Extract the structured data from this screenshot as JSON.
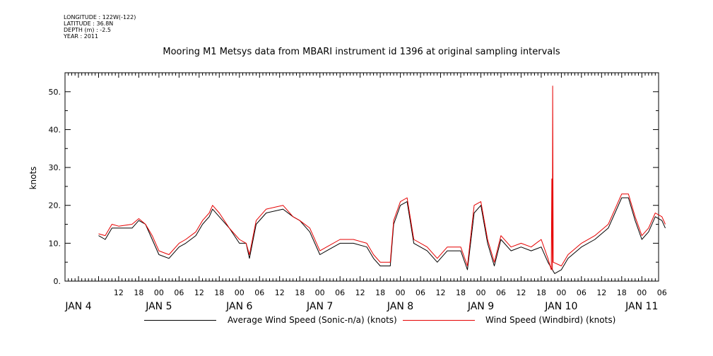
{
  "meta": {
    "longitude": "LONGITUDE : 122W(-122)",
    "latitude": "LATITUDE : 36.8N",
    "depth": "DEPTH (m) : -2.5",
    "year": "YEAR : 2011"
  },
  "colors": {
    "average": "#000000",
    "windbird": "#e60000"
  },
  "chart_data": {
    "type": "line",
    "title": "Mooring M1 Metsys data from MBARI instrument id 1396 at original sampling intervals",
    "ylabel": "knots",
    "xlabel": "",
    "ylim": [
      0,
      55
    ],
    "yticks": [
      0,
      10,
      20,
      30,
      40,
      50
    ],
    "ytick_labels": [
      "0.",
      "10.",
      "20.",
      "30.",
      "40.",
      "50."
    ],
    "xlim": [
      "2011-01-03T20:00",
      "2011-01-11T05:00"
    ],
    "hour_ticks": [
      {
        "t": "2011-01-04T12:00",
        "label": "12"
      },
      {
        "t": "2011-01-04T18:00",
        "label": "18"
      },
      {
        "t": "2011-01-05T00:00",
        "label": "00"
      },
      {
        "t": "2011-01-05T06:00",
        "label": "06"
      },
      {
        "t": "2011-01-05T12:00",
        "label": "12"
      },
      {
        "t": "2011-01-05T18:00",
        "label": "18"
      },
      {
        "t": "2011-01-06T00:00",
        "label": "00"
      },
      {
        "t": "2011-01-06T06:00",
        "label": "06"
      },
      {
        "t": "2011-01-06T12:00",
        "label": "12"
      },
      {
        "t": "2011-01-06T18:00",
        "label": "18"
      },
      {
        "t": "2011-01-07T00:00",
        "label": "00"
      },
      {
        "t": "2011-01-07T06:00",
        "label": "06"
      },
      {
        "t": "2011-01-07T12:00",
        "label": "12"
      },
      {
        "t": "2011-01-07T18:00",
        "label": "18"
      },
      {
        "t": "2011-01-08T00:00",
        "label": "00"
      },
      {
        "t": "2011-01-08T06:00",
        "label": "06"
      },
      {
        "t": "2011-01-08T12:00",
        "label": "12"
      },
      {
        "t": "2011-01-08T18:00",
        "label": "18"
      },
      {
        "t": "2011-01-09T00:00",
        "label": "00"
      },
      {
        "t": "2011-01-09T06:00",
        "label": "06"
      },
      {
        "t": "2011-01-09T12:00",
        "label": "12"
      },
      {
        "t": "2011-01-09T18:00",
        "label": "18"
      },
      {
        "t": "2011-01-10T00:00",
        "label": "00"
      },
      {
        "t": "2011-01-10T06:00",
        "label": "06"
      },
      {
        "t": "2011-01-10T12:00",
        "label": "12"
      },
      {
        "t": "2011-01-10T18:00",
        "label": "18"
      },
      {
        "t": "2011-01-11T00:00",
        "label": "00"
      },
      {
        "t": "2011-01-11T06:00",
        "label": "06"
      }
    ],
    "day_labels": [
      {
        "t": "2011-01-04T00:00",
        "label": "JAN  4"
      },
      {
        "t": "2011-01-05T00:00",
        "label": "JAN  5"
      },
      {
        "t": "2011-01-06T00:00",
        "label": "JAN  6"
      },
      {
        "t": "2011-01-07T00:00",
        "label": "JAN  7"
      },
      {
        "t": "2011-01-08T00:00",
        "label": "JAN  8"
      },
      {
        "t": "2011-01-09T00:00",
        "label": "JAN  9"
      },
      {
        "t": "2011-01-10T00:00",
        "label": "JAN 10"
      },
      {
        "t": "2011-01-11T00:00",
        "label": "JAN 11"
      }
    ],
    "series": [
      {
        "name": "Average Wind Speed (Sonic-n/a) (knots)",
        "points": [
          [
            "2011-01-04T06:00",
            12
          ],
          [
            "2011-01-04T08:00",
            11
          ],
          [
            "2011-01-04T10:00",
            14
          ],
          [
            "2011-01-04T12:00",
            14
          ],
          [
            "2011-01-04T16:00",
            14
          ],
          [
            "2011-01-04T18:00",
            16
          ],
          [
            "2011-01-04T20:00",
            15
          ],
          [
            "2011-01-04T22:00",
            11
          ],
          [
            "2011-01-05T00:00",
            7
          ],
          [
            "2011-01-05T03:00",
            6
          ],
          [
            "2011-01-05T06:00",
            9
          ],
          [
            "2011-01-05T08:00",
            10
          ],
          [
            "2011-01-05T11:00",
            12
          ],
          [
            "2011-01-05T13:00",
            15
          ],
          [
            "2011-01-05T15:00",
            17
          ],
          [
            "2011-01-05T16:00",
            19
          ],
          [
            "2011-01-05T18:00",
            17
          ],
          [
            "2011-01-05T21:00",
            14
          ],
          [
            "2011-01-06T00:00",
            10
          ],
          [
            "2011-01-06T02:00",
            10
          ],
          [
            "2011-01-06T03:00",
            6
          ],
          [
            "2011-01-06T05:00",
            15
          ],
          [
            "2011-01-06T08:00",
            18
          ],
          [
            "2011-01-06T13:00",
            19
          ],
          [
            "2011-01-06T16:00",
            17
          ],
          [
            "2011-01-06T18:00",
            16
          ],
          [
            "2011-01-06T21:00",
            13
          ],
          [
            "2011-01-07T00:00",
            7
          ],
          [
            "2011-01-07T02:00",
            8
          ],
          [
            "2011-01-07T06:00",
            10
          ],
          [
            "2011-01-07T10:00",
            10
          ],
          [
            "2011-01-07T14:00",
            9
          ],
          [
            "2011-01-07T16:00",
            6
          ],
          [
            "2011-01-07T18:00",
            4
          ],
          [
            "2011-01-07T21:00",
            4
          ],
          [
            "2011-01-07T22:00",
            15
          ],
          [
            "2011-01-08T00:00",
            20
          ],
          [
            "2011-01-08T02:00",
            21
          ],
          [
            "2011-01-08T04:00",
            10
          ],
          [
            "2011-01-08T08:00",
            8
          ],
          [
            "2011-01-08T11:00",
            5
          ],
          [
            "2011-01-08T14:00",
            8
          ],
          [
            "2011-01-08T18:00",
            8
          ],
          [
            "2011-01-08T20:00",
            3
          ],
          [
            "2011-01-08T22:00",
            18
          ],
          [
            "2011-01-09T00:00",
            20
          ],
          [
            "2011-01-09T02:00",
            10
          ],
          [
            "2011-01-09T04:00",
            4
          ],
          [
            "2011-01-09T06:00",
            11
          ],
          [
            "2011-01-09T09:00",
            8
          ],
          [
            "2011-01-09T12:00",
            9
          ],
          [
            "2011-01-09T15:00",
            8
          ],
          [
            "2011-01-09T18:00",
            9
          ],
          [
            "2011-01-09T20:00",
            5
          ],
          [
            "2011-01-09T22:00",
            2
          ],
          [
            "2011-01-10T00:00",
            3
          ],
          [
            "2011-01-10T02:00",
            6
          ],
          [
            "2011-01-10T06:00",
            9
          ],
          [
            "2011-01-10T10:00",
            11
          ],
          [
            "2011-01-10T14:00",
            14
          ],
          [
            "2011-01-10T16:00",
            18
          ],
          [
            "2011-01-10T18:00",
            22
          ],
          [
            "2011-01-10T20:00",
            22
          ],
          [
            "2011-01-10T22:00",
            16
          ],
          [
            "2011-01-11T00:00",
            11
          ],
          [
            "2011-01-11T02:00",
            13
          ],
          [
            "2011-01-11T04:00",
            17
          ],
          [
            "2011-01-11T06:00",
            16
          ],
          [
            "2011-01-11T07:00",
            14
          ]
        ]
      },
      {
        "name": "Wind Speed (Windbird) (knots)",
        "points": [
          [
            "2011-01-04T06:00",
            12.5
          ],
          [
            "2011-01-04T08:00",
            12
          ],
          [
            "2011-01-04T10:00",
            15
          ],
          [
            "2011-01-04T12:00",
            14.5
          ],
          [
            "2011-01-04T16:00",
            15
          ],
          [
            "2011-01-04T18:00",
            16.5
          ],
          [
            "2011-01-04T20:00",
            15
          ],
          [
            "2011-01-04T22:00",
            12
          ],
          [
            "2011-01-05T00:00",
            8
          ],
          [
            "2011-01-05T03:00",
            7
          ],
          [
            "2011-01-05T06:00",
            10
          ],
          [
            "2011-01-05T08:00",
            11
          ],
          [
            "2011-01-05T11:00",
            13
          ],
          [
            "2011-01-05T13:00",
            16
          ],
          [
            "2011-01-05T15:00",
            18
          ],
          [
            "2011-01-05T16:00",
            20
          ],
          [
            "2011-01-05T18:00",
            18
          ],
          [
            "2011-01-05T21:00",
            14
          ],
          [
            "2011-01-06T00:00",
            11
          ],
          [
            "2011-01-06T02:00",
            10
          ],
          [
            "2011-01-06T03:00",
            7
          ],
          [
            "2011-01-06T05:00",
            16
          ],
          [
            "2011-01-06T08:00",
            19
          ],
          [
            "2011-01-06T13:00",
            20
          ],
          [
            "2011-01-06T16:00",
            17
          ],
          [
            "2011-01-06T18:00",
            16
          ],
          [
            "2011-01-06T21:00",
            14
          ],
          [
            "2011-01-07T00:00",
            8
          ],
          [
            "2011-01-07T02:00",
            9
          ],
          [
            "2011-01-07T06:00",
            11
          ],
          [
            "2011-01-07T10:00",
            11
          ],
          [
            "2011-01-07T14:00",
            10
          ],
          [
            "2011-01-07T16:00",
            7
          ],
          [
            "2011-01-07T18:00",
            5
          ],
          [
            "2011-01-07T21:00",
            5
          ],
          [
            "2011-01-07T22:00",
            16
          ],
          [
            "2011-01-08T00:00",
            21
          ],
          [
            "2011-01-08T02:00",
            22
          ],
          [
            "2011-01-08T04:00",
            11
          ],
          [
            "2011-01-08T08:00",
            9
          ],
          [
            "2011-01-08T11:00",
            6
          ],
          [
            "2011-01-08T14:00",
            9
          ],
          [
            "2011-01-08T18:00",
            9
          ],
          [
            "2011-01-08T20:00",
            4
          ],
          [
            "2011-01-08T22:00",
            20
          ],
          [
            "2011-01-09T00:00",
            21
          ],
          [
            "2011-01-09T02:00",
            11
          ],
          [
            "2011-01-09T04:00",
            5
          ],
          [
            "2011-01-09T06:00",
            12
          ],
          [
            "2011-01-09T09:00",
            9
          ],
          [
            "2011-01-09T12:00",
            10
          ],
          [
            "2011-01-09T15:00",
            9
          ],
          [
            "2011-01-09T18:00",
            11
          ],
          [
            "2011-01-09T20:00",
            6
          ],
          [
            "2011-01-09T21:00",
            3
          ],
          [
            "2011-01-09T21:10",
            27
          ],
          [
            "2011-01-09T21:20",
            3
          ],
          [
            "2011-01-09T21:25",
            51.5
          ],
          [
            "2011-01-09T21:35",
            5
          ],
          [
            "2011-01-10T00:00",
            4
          ],
          [
            "2011-01-10T02:00",
            7
          ],
          [
            "2011-01-10T06:00",
            10
          ],
          [
            "2011-01-10T10:00",
            12
          ],
          [
            "2011-01-10T14:00",
            15
          ],
          [
            "2011-01-10T16:00",
            19
          ],
          [
            "2011-01-10T18:00",
            23
          ],
          [
            "2011-01-10T20:00",
            23
          ],
          [
            "2011-01-10T22:00",
            17
          ],
          [
            "2011-01-11T00:00",
            12
          ],
          [
            "2011-01-11T02:00",
            14
          ],
          [
            "2011-01-11T04:00",
            18
          ],
          [
            "2011-01-11T06:00",
            17
          ],
          [
            "2011-01-11T07:00",
            15
          ]
        ]
      }
    ],
    "legend_position": "bottom",
    "grid": false
  }
}
